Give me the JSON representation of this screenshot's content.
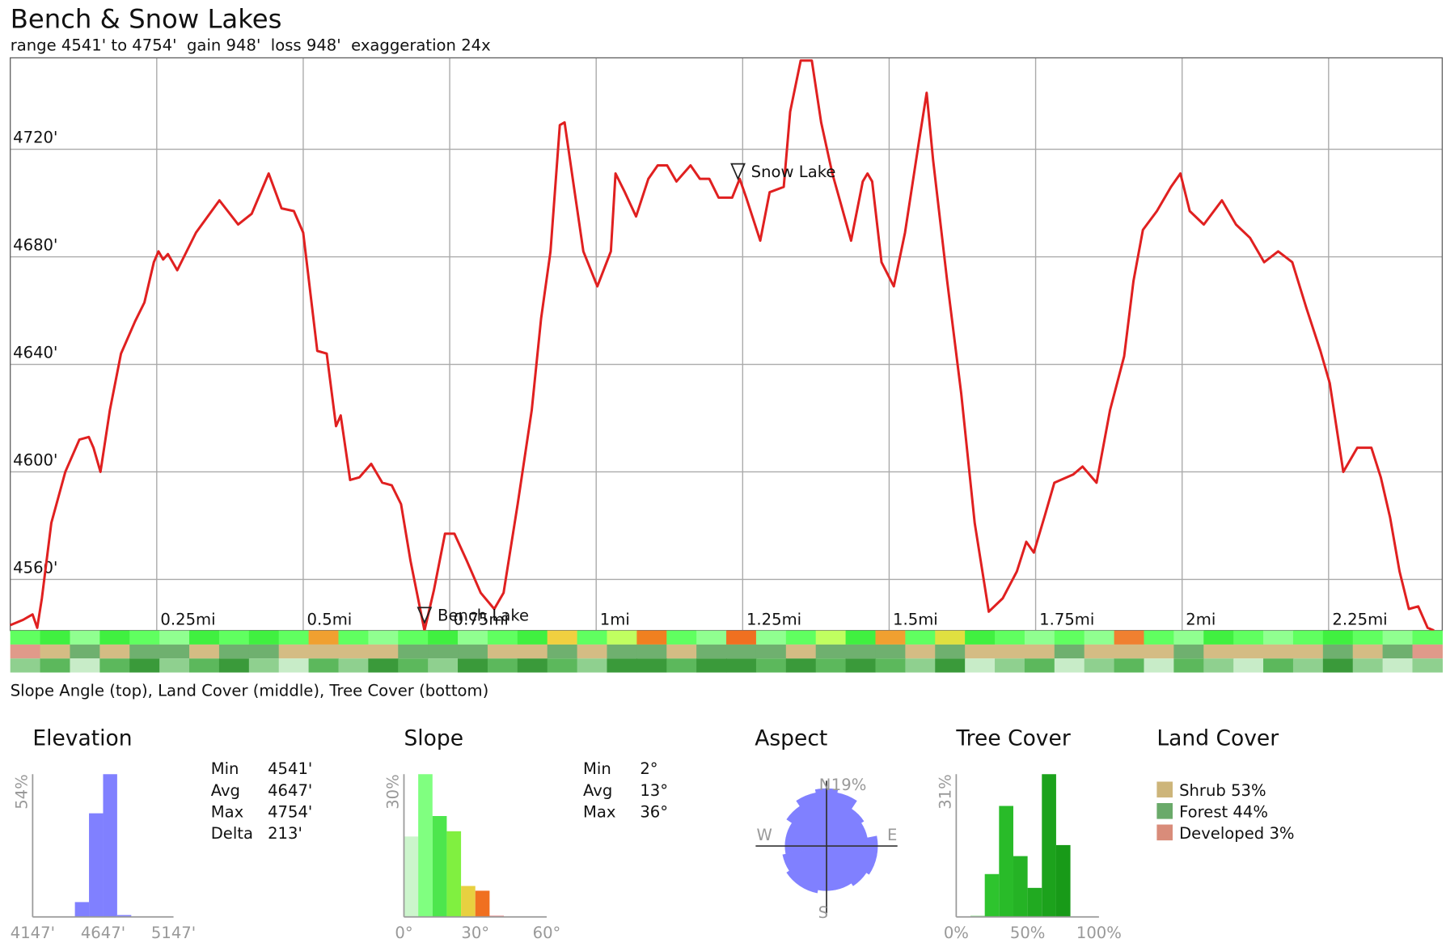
{
  "chart_data": [
    {
      "type": "line",
      "title": "Bench & Snow Lakes",
      "subtitle": "range 4541' to 4754'  gain 948'  loss 948'  exaggeration 24x",
      "color": "#e02020",
      "x": [
        0,
        0.022,
        0.038,
        0.046,
        0.054,
        0.07,
        0.094,
        0.118,
        0.134,
        0.142,
        0.154,
        0.17,
        0.189,
        0.213,
        0.229,
        0.245,
        0.253,
        0.261,
        0.269,
        0.285,
        0.317,
        0.357,
        0.389,
        0.412,
        0.441,
        0.463,
        0.484,
        0.5,
        0.524,
        0.54,
        0.556,
        0.564,
        0.58,
        0.596,
        0.616,
        0.635,
        0.651,
        0.667,
        0.683,
        0.707,
        0.723,
        0.742,
        0.758,
        0.779,
        0.803,
        0.826,
        0.842,
        0.866,
        0.89,
        0.906,
        0.922,
        0.938,
        0.946,
        0.962,
        0.978,
        1.002,
        1.025,
        1.033,
        1.049,
        1.068,
        1.089,
        1.105,
        1.121,
        1.137,
        1.161,
        1.177,
        1.193,
        1.209,
        1.232,
        1.245,
        1.256,
        1.28,
        1.296,
        1.32,
        1.331,
        1.349,
        1.368,
        1.384,
        1.403,
        1.416,
        1.435,
        1.455,
        1.463,
        1.471,
        1.487,
        1.508,
        1.527,
        1.551,
        1.564,
        1.575,
        1.599,
        1.623,
        1.646,
        1.67,
        1.694,
        1.718,
        1.734,
        1.747,
        1.766,
        1.782,
        1.814,
        1.83,
        1.854,
        1.877,
        1.901,
        1.917,
        1.933,
        1.957,
        1.981,
        1.997,
        2.013,
        2.037,
        2.068,
        2.092,
        2.116,
        2.14,
        2.164,
        2.188,
        2.212,
        2.236,
        2.252,
        2.275,
        2.299,
        2.323,
        2.339,
        2.355,
        2.371,
        2.387,
        2.403,
        2.419,
        2.43
      ],
      "values": [
        4543,
        4545,
        4547,
        4542,
        4553,
        4581,
        4600,
        4612,
        4613,
        4609,
        4600,
        4623,
        4644,
        4656,
        4663,
        4678,
        4682,
        4679,
        4681,
        4675,
        4689,
        4701,
        4692,
        4696,
        4711,
        4698,
        4697,
        4689,
        4645,
        4644,
        4617,
        4621,
        4597,
        4598,
        4603,
        4596,
        4595,
        4588,
        4567,
        4541,
        4556,
        4577,
        4577,
        4567,
        4555,
        4549,
        4555,
        4588,
        4623,
        4657,
        4682,
        4729,
        4730,
        4706,
        4682,
        4669,
        4682,
        4711,
        4704,
        4695,
        4709,
        4714,
        4714,
        4708,
        4714,
        4709,
        4709,
        4702,
        4702,
        4709,
        4702,
        4686,
        4704,
        4706,
        4734,
        4753,
        4753,
        4730,
        4711,
        4701,
        4686,
        4708,
        4711,
        4708,
        4678,
        4669,
        4689,
        4723,
        4741,
        4716,
        4671,
        4629,
        4581,
        4548,
        4553,
        4563,
        4574,
        4570,
        4584,
        4596,
        4599,
        4602,
        4596,
        4623,
        4643,
        4671,
        4690,
        4697,
        4706,
        4711,
        4697,
        4692,
        4701,
        4692,
        4687,
        4678,
        4682,
        4678,
        4661,
        4645,
        4633,
        4600,
        4609,
        4609,
        4598,
        4583,
        4563,
        4549,
        4550,
        4542,
        4541
      ],
      "xlim": [
        0,
        2.444
      ],
      "ylim": [
        4541,
        4754
      ],
      "xticks": [
        {
          "value": 0.25,
          "label": "0.25mi"
        },
        {
          "value": 0.5,
          "label": "0.5mi"
        },
        {
          "value": 0.75,
          "label": "0.75mi"
        },
        {
          "value": 1,
          "label": "1mi"
        },
        {
          "value": 1.25,
          "label": "1.25mi"
        },
        {
          "value": 1.5,
          "label": "1.5mi"
        },
        {
          "value": 1.75,
          "label": "1.75mi"
        },
        {
          "value": 2,
          "label": "2mi"
        },
        {
          "value": 2.25,
          "label": "2.25mi"
        }
      ],
      "yticks": [
        {
          "value": 4560,
          "label": "4560'"
        },
        {
          "value": 4600,
          "label": "4600'"
        },
        {
          "value": 4640,
          "label": "4640'"
        },
        {
          "value": 4680,
          "label": "4680'"
        },
        {
          "value": 4720,
          "label": "4720'"
        }
      ],
      "grid": true,
      "annotations": [
        {
          "label": "Bench Lake",
          "x": 0.707,
          "y": 4544
        },
        {
          "label": "Snow Lake",
          "x": 1.242,
          "y": 4709
        }
      ],
      "strips": [
        [
          "#60ff60",
          "#40f040",
          "#90ff90",
          "#40f040",
          "#60ff60",
          "#90ff90",
          "#40f040",
          "#60ff60",
          "#40f040",
          "#60ff60",
          "#f0a030",
          "#60ff60",
          "#90ff90",
          "#60ff60",
          "#40f040",
          "#90ff90",
          "#60ff60",
          "#40f040",
          "#f0d040",
          "#60ff60",
          "#c0ff60",
          "#f08020",
          "#60ff60",
          "#90ff90",
          "#f07020",
          "#90ff90",
          "#60ff60",
          "#c0ff60",
          "#40f040",
          "#f0a030",
          "#60ff60",
          "#e0e040",
          "#40f040",
          "#60ff60",
          "#90ff90",
          "#60ff60",
          "#90ff90",
          "#f08030",
          "#60ff60",
          "#90ff90",
          "#40f040",
          "#60ff60",
          "#90ff90",
          "#60ff60",
          "#40f040",
          "#60ff60",
          "#90ff90",
          "#60ff60"
        ],
        [
          "#e09a8a",
          "#d4bc84",
          "#6fb06f",
          "#d4bc84",
          "#6fb06f",
          "#6fb06f",
          "#d4bc84",
          "#6fb06f",
          "#6fb06f",
          "#d4bc84",
          "#d4bc84",
          "#d4bc84",
          "#d4bc84",
          "#6fb06f",
          "#6fb06f",
          "#6fb06f",
          "#d4bc84",
          "#d4bc84",
          "#6fb06f",
          "#d4bc84",
          "#6fb06f",
          "#6fb06f",
          "#d4bc84",
          "#6fb06f",
          "#6fb06f",
          "#6fb06f",
          "#d4bc84",
          "#6fb06f",
          "#6fb06f",
          "#6fb06f",
          "#d4bc84",
          "#6fb06f",
          "#d4bc84",
          "#d4bc84",
          "#d4bc84",
          "#6fb06f",
          "#d4bc84",
          "#d4bc84",
          "#d4bc84",
          "#6fb06f",
          "#d4bc84",
          "#d4bc84",
          "#d4bc84",
          "#d4bc84",
          "#6fb06f",
          "#d4bc84",
          "#6fb06f",
          "#e09a8a"
        ],
        [
          "#8fd08f",
          "#5cb85c",
          "#c8ecc8",
          "#5cb85c",
          "#3a9a3a",
          "#8fd08f",
          "#5cb85c",
          "#3a9a3a",
          "#8fd08f",
          "#c8ecc8",
          "#5cb85c",
          "#8fd08f",
          "#3a9a3a",
          "#5cb85c",
          "#8fd08f",
          "#3a9a3a",
          "#5cb85c",
          "#3a9a3a",
          "#5cb85c",
          "#8fd08f",
          "#3a9a3a",
          "#3a9a3a",
          "#5cb85c",
          "#3a9a3a",
          "#3a9a3a",
          "#5cb85c",
          "#3a9a3a",
          "#5cb85c",
          "#3a9a3a",
          "#5cb85c",
          "#8fd08f",
          "#3a9a3a",
          "#c8ecc8",
          "#8fd08f",
          "#5cb85c",
          "#c8ecc8",
          "#8fd08f",
          "#5cb85c",
          "#c8ecc8",
          "#5cb85c",
          "#8fd08f",
          "#c8ecc8",
          "#5cb85c",
          "#8fd08f",
          "#3a9a3a",
          "#8fd08f",
          "#c8ecc8",
          "#8fd08f"
        ]
      ],
      "strip_caption": "Slope Angle (top), Land Cover (middle), Tree Cover (bottom)"
    },
    {
      "type": "histogram",
      "title": "Elevation",
      "color": "#8080ff",
      "bins": [
        4447,
        4547,
        4647,
        4747,
        4847
      ],
      "values": [
        5.6,
        39.2,
        54,
        0.7
      ],
      "xlim": [
        4147,
        5147
      ],
      "ylim": [
        0,
        54
      ],
      "xticks": [
        {
          "value": 4147,
          "label": "4147'"
        },
        {
          "value": 4647,
          "label": "4647'"
        },
        {
          "value": 5147,
          "label": "5147'"
        }
      ],
      "yticks": [
        {
          "value": 54,
          "label": "54%"
        }
      ],
      "stats": [
        [
          "Min",
          "4541'"
        ],
        [
          "Avg",
          "4647'"
        ],
        [
          "Max",
          "4754'"
        ],
        [
          "Delta",
          "213'"
        ]
      ]
    },
    {
      "type": "histogram",
      "title": "Slope",
      "colors": [
        "#ccf5cc",
        "#80ff80",
        "#4de64d",
        "#80f040",
        "#e8d040",
        "#f07020",
        "#e02020"
      ],
      "bins": [
        0,
        6,
        12,
        18,
        24,
        30,
        36,
        42
      ],
      "values": [
        16.9,
        30,
        21.2,
        18,
        6.5,
        5.5,
        0.2
      ],
      "xlim": [
        0,
        60
      ],
      "ylim": [
        0,
        30
      ],
      "xticks": [
        {
          "value": 0,
          "label": "0°"
        },
        {
          "value": 30,
          "label": "30°"
        },
        {
          "value": 60,
          "label": "60°"
        }
      ],
      "yticks": [
        {
          "value": 30,
          "label": "30%"
        }
      ],
      "stats": [
        [
          "Min",
          "2°"
        ],
        [
          "Avg",
          "13°"
        ],
        [
          "Max",
          "36°"
        ]
      ]
    },
    {
      "type": "rose",
      "title": "Aspect",
      "color": "#8080ff",
      "values": [
        18,
        17,
        14,
        13,
        16,
        16,
        15,
        14,
        14,
        15,
        15,
        14,
        13,
        13,
        15,
        17
      ],
      "rlim": [
        0,
        19
      ],
      "rticks": [
        {
          "value": 19,
          "label": "19%"
        }
      ],
      "directions": [
        "N",
        "E",
        "S",
        "W"
      ]
    },
    {
      "type": "histogram",
      "title": "Tree Cover",
      "colors": [
        "#33cc33",
        "#2ec42e",
        "#29bb29",
        "#25b325",
        "#21aa21",
        "#1ca21c",
        "#189a18"
      ],
      "bins": [
        10,
        20,
        30,
        40,
        50,
        60,
        70,
        80
      ],
      "values": [
        0.2,
        9.3,
        24.1,
        13.2,
        6.3,
        31,
        15.6
      ],
      "xlim": [
        0,
        100
      ],
      "ylim": [
        0,
        31
      ],
      "xticks": [
        {
          "value": 0,
          "label": "0%"
        },
        {
          "value": 50,
          "label": "50%"
        },
        {
          "value": 100,
          "label": "100%"
        }
      ],
      "yticks": [
        {
          "value": 31,
          "label": "31%"
        }
      ]
    },
    {
      "type": "legend",
      "title": "Land Cover",
      "entries": [
        {
          "label": "Shrub 53%",
          "color": "#cdb57a"
        },
        {
          "label": "Forest 44%",
          "color": "#6aaa6a"
        },
        {
          "label": "Developed 3%",
          "color": "#d98c7a"
        }
      ]
    }
  ]
}
